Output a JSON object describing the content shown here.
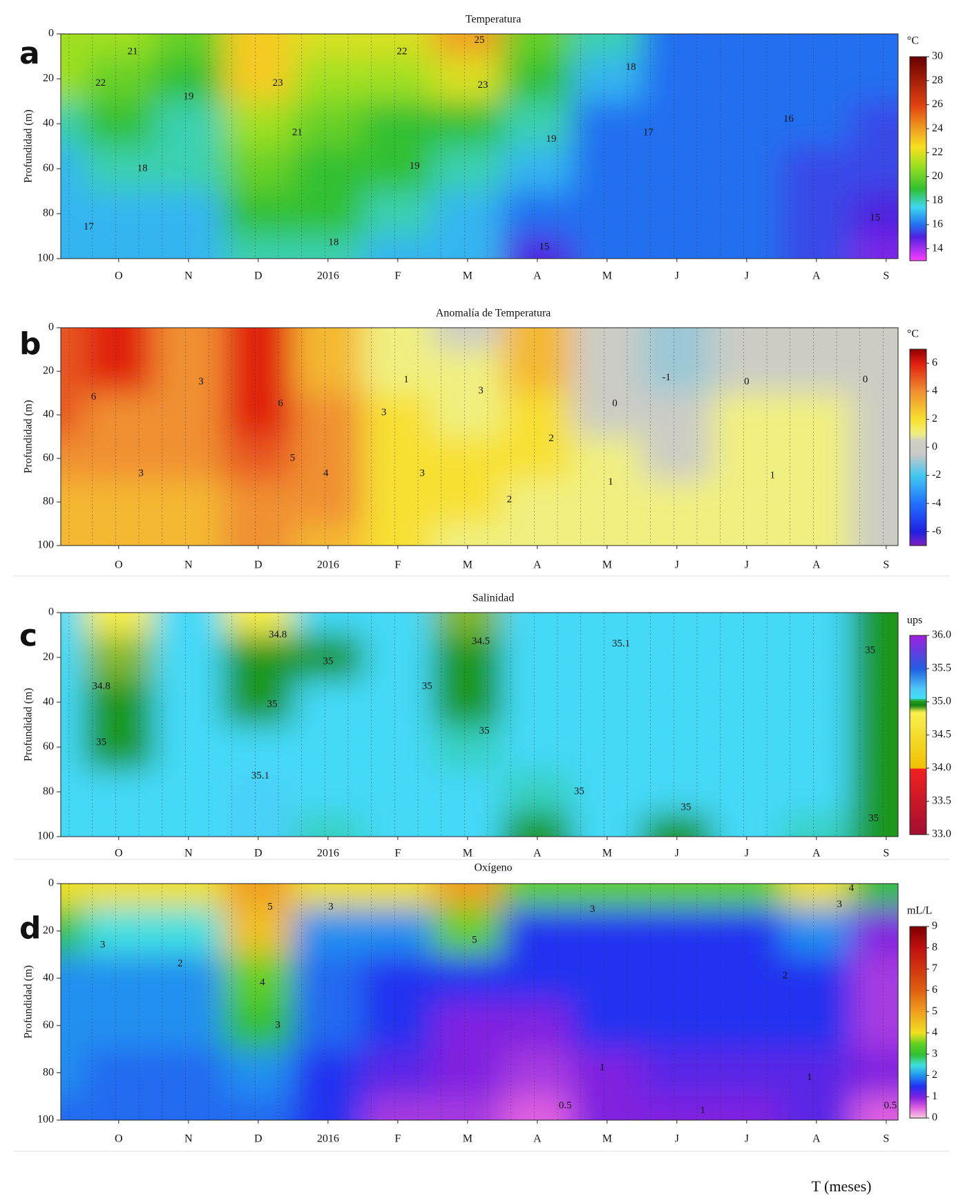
{
  "chart_data": [
    {
      "type": "contour",
      "label": "a",
      "title": "Temperatura",
      "ylabel": "Profundidad (m)",
      "categories": [
        null,
        "O",
        "N",
        "D",
        "2016",
        "F",
        "M",
        "A",
        "M",
        "J",
        "J",
        "A",
        "S"
      ],
      "depths": [
        0,
        20,
        40,
        60,
        80,
        100
      ],
      "values": [
        [
          21,
          21,
          20,
          23,
          22,
          22,
          24,
          20,
          18,
          16,
          16,
          16,
          16
        ],
        [
          21,
          20,
          19,
          23,
          21,
          21,
          22,
          19,
          17,
          16,
          16,
          16,
          16
        ],
        [
          18,
          19,
          18,
          21,
          20,
          19,
          19,
          18,
          16,
          16,
          16,
          16,
          15.5
        ],
        [
          17,
          18,
          18,
          20,
          19,
          19,
          18,
          17,
          16,
          16,
          16,
          15.5,
          15.5
        ],
        [
          17,
          17,
          17,
          19,
          19,
          18,
          17,
          16,
          16,
          16,
          16,
          15.5,
          15
        ],
        [
          17,
          17,
          17,
          18,
          18,
          17,
          17,
          15,
          16,
          16,
          16,
          15.5,
          14.5
        ]
      ],
      "ylim": [
        0,
        100
      ],
      "y_inverted": true,
      "yticks": [
        0,
        20,
        40,
        60,
        80,
        100
      ],
      "unit": "°C",
      "clim": [
        13,
        30
      ],
      "cticks": [
        14,
        16,
        18,
        20,
        22,
        24,
        26,
        28,
        30
      ],
      "colorscale": [
        [
          13,
          "#ff40ff"
        ],
        [
          15,
          "#5020e0"
        ],
        [
          16,
          "#2070f0"
        ],
        [
          17.5,
          "#40d8f0"
        ],
        [
          19,
          "#30c030"
        ],
        [
          21,
          "#a0e020"
        ],
        [
          22.5,
          "#f8e020"
        ],
        [
          24,
          "#f0a020"
        ],
        [
          26,
          "#e04010"
        ],
        [
          30,
          "#6a0000"
        ]
      ],
      "annotations": [
        {
          "text": "21",
          "x": 1.2,
          "depth": 8
        },
        {
          "text": "22",
          "x": 0.74,
          "depth": 22
        },
        {
          "text": "19",
          "x": 2.0,
          "depth": 28
        },
        {
          "text": "18",
          "x": 1.34,
          "depth": 60
        },
        {
          "text": "17",
          "x": 0.57,
          "depth": 86
        },
        {
          "text": "23",
          "x": 3.28,
          "depth": 22
        },
        {
          "text": "21",
          "x": 3.56,
          "depth": 44
        },
        {
          "text": "22",
          "x": 5.06,
          "depth": 8
        },
        {
          "text": "25",
          "x": 6.17,
          "depth": 3
        },
        {
          "text": "23",
          "x": 6.22,
          "depth": 23
        },
        {
          "text": "19",
          "x": 7.2,
          "depth": 47
        },
        {
          "text": "19",
          "x": 5.24,
          "depth": 59
        },
        {
          "text": "18",
          "x": 4.08,
          "depth": 93
        },
        {
          "text": "15",
          "x": 7.1,
          "depth": 95
        },
        {
          "text": "18",
          "x": 8.34,
          "depth": 15
        },
        {
          "text": "17",
          "x": 8.59,
          "depth": 44
        },
        {
          "text": "16",
          "x": 10.6,
          "depth": 38
        },
        {
          "text": "15",
          "x": 11.84,
          "depth": 82
        }
      ]
    },
    {
      "type": "contour",
      "label": "b",
      "title": "Anomalía de Temperatura",
      "ylabel": "Profundidad (m)",
      "categories": [
        null,
        "O",
        "N",
        "D",
        "2016",
        "F",
        "M",
        "A",
        "M",
        "J",
        "J",
        "A",
        "S"
      ],
      "depths": [
        0,
        20,
        40,
        60,
        80,
        100
      ],
      "values": [
        [
          5,
          6,
          4,
          6,
          3,
          1,
          0,
          3,
          0,
          -1,
          0,
          0,
          0
        ],
        [
          5,
          6,
          4,
          6,
          3,
          1,
          1,
          3,
          0,
          -1,
          0,
          0,
          0
        ],
        [
          5,
          4,
          4,
          6,
          4,
          2,
          1,
          2,
          0,
          0,
          1,
          1,
          0
        ],
        [
          4,
          4,
          4,
          5,
          4,
          2,
          2,
          2,
          1,
          0,
          1,
          1,
          0
        ],
        [
          3,
          3,
          3,
          4,
          4,
          2,
          2,
          1,
          1,
          1,
          1,
          1,
          0
        ],
        [
          3,
          3,
          3,
          4,
          3,
          2,
          1,
          1,
          1,
          1,
          1,
          1,
          0
        ]
      ],
      "ylim": [
        0,
        100
      ],
      "y_inverted": true,
      "yticks": [
        0,
        20,
        40,
        60,
        80,
        100
      ],
      "unit": "°C",
      "clim": [
        -7,
        7
      ],
      "cticks": [
        -6,
        -4,
        -2,
        0,
        2,
        4,
        6
      ],
      "colorscale": [
        [
          -7,
          "#8020c0"
        ],
        [
          -6,
          "#2020e0"
        ],
        [
          -4,
          "#2070ff"
        ],
        [
          -2,
          "#40c8f0"
        ],
        [
          -0.5,
          "#c8c8c8"
        ],
        [
          0.5,
          "#d0d0c0"
        ],
        [
          1,
          "#f0f080"
        ],
        [
          2,
          "#f8e030"
        ],
        [
          4,
          "#f09030"
        ],
        [
          6,
          "#e02010"
        ],
        [
          7,
          "#900000"
        ]
      ],
      "annotations": [
        {
          "text": "6",
          "x": 0.64,
          "depth": 32
        },
        {
          "text": "3",
          "x": 2.18,
          "depth": 25
        },
        {
          "text": "3",
          "x": 1.32,
          "depth": 67
        },
        {
          "text": "6",
          "x": 3.32,
          "depth": 35
        },
        {
          "text": "5",
          "x": 3.49,
          "depth": 60
        },
        {
          "text": "4",
          "x": 3.97,
          "depth": 67
        },
        {
          "text": "3",
          "x": 4.8,
          "depth": 39
        },
        {
          "text": "1",
          "x": 5.12,
          "depth": 24
        },
        {
          "text": "3",
          "x": 5.35,
          "depth": 67
        },
        {
          "text": "3",
          "x": 6.19,
          "depth": 29
        },
        {
          "text": "2",
          "x": 7.2,
          "depth": 51
        },
        {
          "text": "2",
          "x": 6.6,
          "depth": 79
        },
        {
          "text": "0",
          "x": 8.11,
          "depth": 35
        },
        {
          "text": "1",
          "x": 8.05,
          "depth": 71
        },
        {
          "text": "-1",
          "x": 8.85,
          "depth": 23
        },
        {
          "text": "0",
          "x": 10.0,
          "depth": 25
        },
        {
          "text": "1",
          "x": 10.37,
          "depth": 68
        },
        {
          "text": "0",
          "x": 11.7,
          "depth": 24
        }
      ]
    },
    {
      "type": "contour",
      "label": "c",
      "title": "Salinidad",
      "ylabel": "Profundidad (m)",
      "categories": [
        null,
        "O",
        "N",
        "D",
        "2016",
        "F",
        "M",
        "A",
        "M",
        "J",
        "J",
        "A",
        "S"
      ],
      "depths": [
        0,
        20,
        40,
        60,
        80,
        100
      ],
      "values": [
        [
          35.1,
          34.8,
          35.1,
          34.8,
          35.1,
          35.1,
          34.9,
          35.1,
          35.1,
          35.1,
          35.1,
          35.1,
          35.0
        ],
        [
          35.1,
          34.9,
          35.1,
          35.0,
          35.0,
          35.1,
          35.0,
          35.1,
          35.1,
          35.1,
          35.1,
          35.1,
          35.0
        ],
        [
          35.1,
          35.0,
          35.1,
          35.0,
          35.1,
          35.1,
          35.0,
          35.1,
          35.1,
          35.1,
          35.1,
          35.1,
          35.0
        ],
        [
          35.1,
          35.0,
          35.1,
          35.1,
          35.1,
          35.1,
          35.05,
          35.1,
          35.1,
          35.1,
          35.1,
          35.1,
          35.0
        ],
        [
          35.1,
          35.1,
          35.1,
          35.15,
          35.1,
          35.1,
          35.1,
          35.05,
          35.1,
          35.1,
          35.1,
          35.1,
          35.0
        ],
        [
          35.1,
          35.1,
          35.1,
          35.15,
          35.05,
          35.1,
          35.1,
          35.0,
          35.1,
          35.0,
          35.1,
          35.05,
          35.0
        ]
      ],
      "ylim": [
        0,
        100
      ],
      "y_inverted": true,
      "yticks": [
        0,
        20,
        40,
        60,
        80,
        100
      ],
      "unit": "ups",
      "clim": [
        33,
        36
      ],
      "cticks": [
        {
          "value": 33,
          "label": "33.0"
        },
        33.5,
        {
          "value": 34,
          "label": "34.0"
        },
        34.5,
        {
          "value": 35,
          "label": "35.0"
        },
        35.5,
        {
          "value": 36,
          "label": "36.0"
        }
      ],
      "colorscale": [
        [
          33,
          "#a01030"
        ],
        [
          33.99,
          "#f02020"
        ],
        [
          34,
          "#f0c000"
        ],
        [
          34.85,
          "#f8f050"
        ],
        [
          34.95,
          "#108010"
        ],
        [
          35.02,
          "#20a020"
        ],
        [
          35.06,
          "#40e0f8"
        ],
        [
          35.2,
          "#50c8f8"
        ],
        [
          35.5,
          "#2060e0"
        ],
        [
          36,
          "#a020e0"
        ]
      ],
      "annotations": [
        {
          "text": "34.8",
          "x": 3.28,
          "depth": 10
        },
        {
          "text": "34.8",
          "x": 0.75,
          "depth": 33
        },
        {
          "text": "35",
          "x": 0.75,
          "depth": 58
        },
        {
          "text": "35",
          "x": 4.0,
          "depth": 22
        },
        {
          "text": "35",
          "x": 3.2,
          "depth": 41
        },
        {
          "text": "35",
          "x": 5.42,
          "depth": 33
        },
        {
          "text": "34.5",
          "x": 6.19,
          "depth": 13
        },
        {
          "text": "35",
          "x": 6.24,
          "depth": 53
        },
        {
          "text": "35.1",
          "x": 3.03,
          "depth": 73
        },
        {
          "text": "35.1",
          "x": 8.2,
          "depth": 14
        },
        {
          "text": "35",
          "x": 7.6,
          "depth": 80
        },
        {
          "text": "35",
          "x": 9.13,
          "depth": 87
        },
        {
          "text": "35",
          "x": 11.77,
          "depth": 17
        },
        {
          "text": "35",
          "x": 11.82,
          "depth": 92
        }
      ]
    },
    {
      "type": "contour",
      "label": "d",
      "title": "Oxígeno",
      "ylabel": "Profundidad (m)",
      "xlabel": "T (meses)",
      "categories": [
        null,
        "O",
        "N",
        "D",
        "2016",
        "F",
        "M",
        "A",
        "M",
        "J",
        "J",
        "A",
        "S"
      ],
      "depths": [
        0,
        20,
        40,
        60,
        80,
        100
      ],
      "values": [
        [
          4,
          4,
          4,
          5,
          4,
          4,
          5,
          3.5,
          3.5,
          3.5,
          3.5,
          4,
          3
        ],
        [
          3,
          2.5,
          2.5,
          4.5,
          2,
          2,
          3.5,
          1.5,
          1.5,
          1.5,
          1.5,
          2,
          1
        ],
        [
          2,
          2,
          2,
          3.5,
          1.8,
          1.5,
          1.5,
          1.5,
          1.5,
          1.5,
          1.5,
          1.5,
          0.8
        ],
        [
          2,
          2,
          2,
          3,
          1.8,
          1.5,
          1,
          1,
          1.5,
          1.5,
          1.5,
          1.5,
          0.8
        ],
        [
          2,
          1.8,
          1.8,
          2,
          1.5,
          1.2,
          1,
          0.8,
          1,
          1.2,
          1.2,
          1.2,
          1
        ],
        [
          1.8,
          1.8,
          1.8,
          1.8,
          1.5,
          0.8,
          0.8,
          0.5,
          1,
          1,
          1,
          1.2,
          0.5
        ]
      ],
      "ylim": [
        0,
        100
      ],
      "y_inverted": true,
      "yticks": [
        0,
        20,
        40,
        60,
        80,
        100
      ],
      "unit": "mL/L",
      "clim": [
        0,
        9
      ],
      "cticks": [
        0,
        1,
        2,
        3,
        4,
        5,
        6,
        7,
        8,
        9
      ],
      "colorscale": [
        [
          0,
          "#f8d0e0"
        ],
        [
          0.5,
          "#e060e0"
        ],
        [
          1,
          "#8020e0"
        ],
        [
          1.5,
          "#2030f0"
        ],
        [
          2,
          "#2090f0"
        ],
        [
          2.5,
          "#40e0e0"
        ],
        [
          3,
          "#30c030"
        ],
        [
          3.5,
          "#60d020"
        ],
        [
          4,
          "#f0e020"
        ],
        [
          5,
          "#f0a020"
        ],
        [
          6,
          "#e06010"
        ],
        [
          8,
          "#c01010"
        ],
        [
          9,
          "#800000"
        ]
      ],
      "annotations": [
        {
          "text": "3",
          "x": 0.77,
          "depth": 26
        },
        {
          "text": "2",
          "x": 1.88,
          "depth": 34
        },
        {
          "text": "5",
          "x": 3.17,
          "depth": 10
        },
        {
          "text": "3",
          "x": 4.04,
          "depth": 10
        },
        {
          "text": "4",
          "x": 3.06,
          "depth": 42
        },
        {
          "text": "3",
          "x": 3.28,
          "depth": 60
        },
        {
          "text": "5",
          "x": 6.1,
          "depth": 24
        },
        {
          "text": "3",
          "x": 7.79,
          "depth": 11
        },
        {
          "text": "1",
          "x": 7.93,
          "depth": 78
        },
        {
          "text": "0.5",
          "x": 7.4,
          "depth": 94
        },
        {
          "text": "1",
          "x": 9.37,
          "depth": 96
        },
        {
          "text": "2",
          "x": 10.55,
          "depth": 39
        },
        {
          "text": "4",
          "x": 11.5,
          "depth": 2
        },
        {
          "text": "3",
          "x": 11.33,
          "depth": 9
        },
        {
          "text": "1",
          "x": 10.9,
          "depth": 82
        },
        {
          "text": "0.5",
          "x": 12.06,
          "depth": 94
        }
      ]
    }
  ]
}
